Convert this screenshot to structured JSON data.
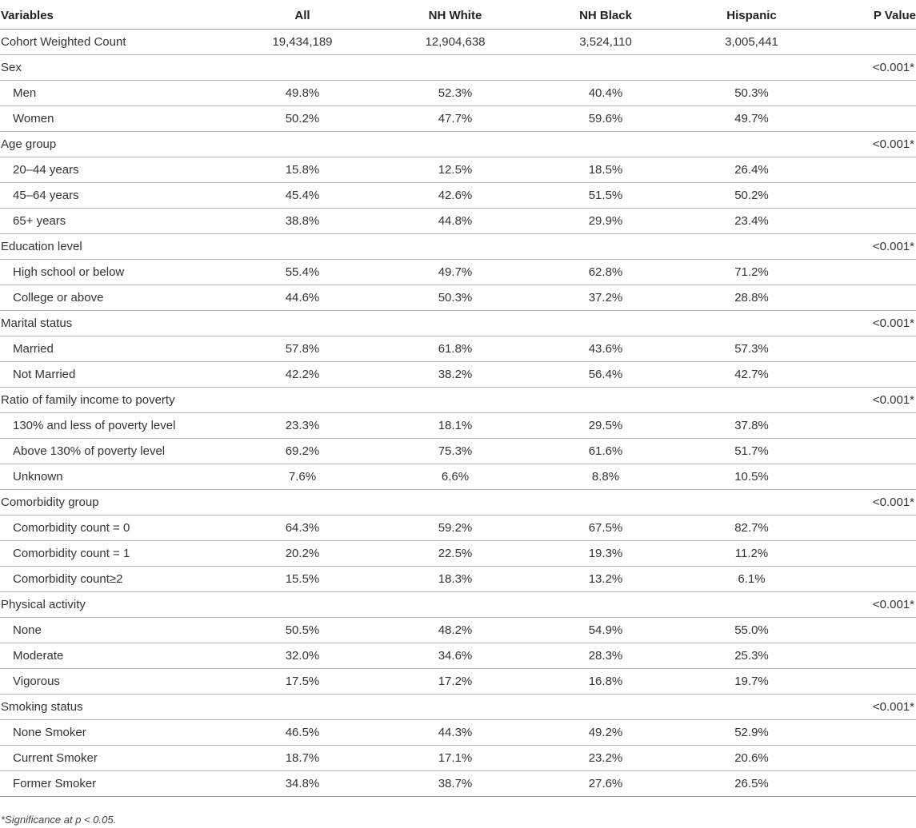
{
  "headers": [
    "Variables",
    "All",
    "NH White",
    "NH Black",
    "Hispanic",
    "P Value"
  ],
  "rows": [
    {
      "type": "main",
      "cells": [
        "Cohort Weighted Count",
        "19,434,189",
        "12,904,638",
        "3,524,110",
        "3,005,441",
        ""
      ]
    },
    {
      "type": "main",
      "cells": [
        "Sex",
        "",
        "",
        "",
        "",
        "<0.001*"
      ]
    },
    {
      "type": "sub",
      "cells": [
        "Men",
        "49.8%",
        "52.3%",
        "40.4%",
        "50.3%",
        ""
      ]
    },
    {
      "type": "sub",
      "cells": [
        "Women",
        "50.2%",
        "47.7%",
        "59.6%",
        "49.7%",
        ""
      ]
    },
    {
      "type": "main",
      "cells": [
        "Age group",
        "",
        "",
        "",
        "",
        "<0.001*"
      ]
    },
    {
      "type": "sub",
      "cells": [
        "20–44 years",
        "15.8%",
        "12.5%",
        "18.5%",
        "26.4%",
        ""
      ]
    },
    {
      "type": "sub",
      "cells": [
        "45–64 years",
        "45.4%",
        "42.6%",
        "51.5%",
        "50.2%",
        ""
      ]
    },
    {
      "type": "sub",
      "cells": [
        "65+ years",
        "38.8%",
        "44.8%",
        "29.9%",
        "23.4%",
        ""
      ]
    },
    {
      "type": "main",
      "cells": [
        "Education level",
        "",
        "",
        "",
        "",
        "<0.001*"
      ]
    },
    {
      "type": "sub",
      "cells": [
        "High school or below",
        "55.4%",
        "49.7%",
        "62.8%",
        "71.2%",
        ""
      ]
    },
    {
      "type": "sub",
      "cells": [
        "College or above",
        "44.6%",
        "50.3%",
        "37.2%",
        "28.8%",
        ""
      ]
    },
    {
      "type": "main",
      "cells": [
        "Marital status",
        "",
        "",
        "",
        "",
        "<0.001*"
      ]
    },
    {
      "type": "sub",
      "cells": [
        "Married",
        "57.8%",
        "61.8%",
        "43.6%",
        "57.3%",
        ""
      ]
    },
    {
      "type": "sub",
      "cells": [
        "Not Married",
        "42.2%",
        "38.2%",
        "56.4%",
        "42.7%",
        ""
      ]
    },
    {
      "type": "main",
      "cells": [
        "Ratio of family income to poverty",
        "",
        "",
        "",
        "",
        "<0.001*"
      ]
    },
    {
      "type": "sub",
      "cells": [
        "130% and less of poverty level",
        "23.3%",
        "18.1%",
        "29.5%",
        "37.8%",
        ""
      ]
    },
    {
      "type": "sub",
      "cells": [
        "Above 130% of poverty level",
        "69.2%",
        "75.3%",
        "61.6%",
        "51.7%",
        ""
      ]
    },
    {
      "type": "sub",
      "cells": [
        "Unknown",
        "7.6%",
        "6.6%",
        "8.8%",
        "10.5%",
        ""
      ]
    },
    {
      "type": "main",
      "cells": [
        "Comorbidity group",
        "",
        "",
        "",
        "",
        "<0.001*"
      ]
    },
    {
      "type": "sub",
      "cells": [
        "Comorbidity count = 0",
        "64.3%",
        "59.2%",
        "67.5%",
        "82.7%",
        ""
      ]
    },
    {
      "type": "sub",
      "cells": [
        "Comorbidity count = 1",
        "20.2%",
        "22.5%",
        "19.3%",
        "11.2%",
        ""
      ]
    },
    {
      "type": "sub",
      "cells": [
        "Comorbidity count≥2",
        "15.5%",
        "18.3%",
        "13.2%",
        "6.1%",
        ""
      ]
    },
    {
      "type": "main",
      "cells": [
        "Physical activity",
        "",
        "",
        "",
        "",
        "<0.001*"
      ]
    },
    {
      "type": "sub",
      "cells": [
        "None",
        "50.5%",
        "48.2%",
        "54.9%",
        "55.0%",
        ""
      ]
    },
    {
      "type": "sub",
      "cells": [
        "Moderate",
        "32.0%",
        "34.6%",
        "28.3%",
        "25.3%",
        ""
      ]
    },
    {
      "type": "sub",
      "cells": [
        "Vigorous",
        "17.5%",
        "17.2%",
        "16.8%",
        "19.7%",
        ""
      ]
    },
    {
      "type": "main",
      "cells": [
        "Smoking status",
        "",
        "",
        "",
        "",
        "<0.001*"
      ]
    },
    {
      "type": "sub",
      "cells": [
        "None Smoker",
        "46.5%",
        "44.3%",
        "49.2%",
        "52.9%",
        ""
      ]
    },
    {
      "type": "sub",
      "cells": [
        "Current Smoker",
        "18.7%",
        "17.1%",
        "23.2%",
        "20.6%",
        ""
      ]
    },
    {
      "type": "sub",
      "cells": [
        "Former Smoker",
        "34.8%",
        "38.7%",
        "27.6%",
        "26.5%",
        ""
      ]
    }
  ],
  "footnote": "*Significance at p < 0.05."
}
